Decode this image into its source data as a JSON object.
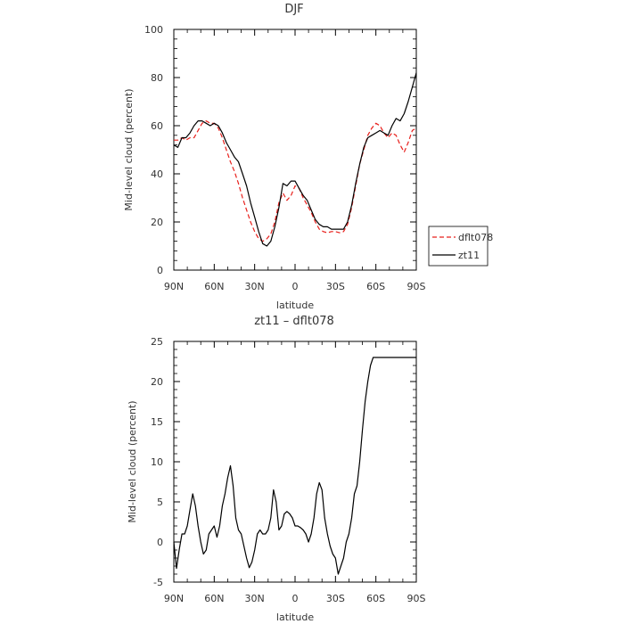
{
  "chart_data": [
    {
      "type": "line",
      "title": "DJF",
      "xlabel": "latitude",
      "ylabel": "Mid-level cloud (percent)",
      "xlim": [
        90,
        -90
      ],
      "ylim": [
        0,
        100
      ],
      "x_ticks": [
        90,
        60,
        30,
        0,
        -30,
        -60,
        -90
      ],
      "x_tick_labels": [
        "90N",
        "60N",
        "30N",
        "0",
        "30S",
        "60S",
        "90S"
      ],
      "y_ticks": [
        0,
        20,
        40,
        60,
        80,
        100
      ],
      "grid": false,
      "legend": "right",
      "series": [
        {
          "name": "dflt078",
          "color": "#e8201c",
          "dash": "dashed",
          "x": [
            90,
            87,
            84,
            81,
            78,
            75,
            72,
            69,
            66,
            63,
            60,
            57,
            54,
            51,
            48,
            45,
            42,
            39,
            36,
            33,
            30,
            27,
            24,
            21,
            18,
            15,
            12,
            9,
            6,
            3,
            0,
            -3,
            -6,
            -9,
            -12,
            -15,
            -18,
            -21,
            -24,
            -27,
            -30,
            -33,
            -36,
            -39,
            -42,
            -45,
            -48,
            -51,
            -54,
            -57,
            -60,
            -63,
            -66,
            -69,
            -72,
            -75,
            -78,
            -81,
            -84,
            -87,
            -90
          ],
          "y": [
            54,
            54,
            55,
            54,
            55,
            55,
            58,
            61,
            62,
            61,
            61,
            59,
            55,
            50,
            45,
            41,
            36,
            30,
            25,
            20,
            16,
            13,
            12,
            13,
            15,
            20,
            28,
            32,
            29,
            31,
            35,
            34,
            30,
            27,
            24,
            20,
            17,
            16,
            15.5,
            16,
            16,
            15.5,
            16,
            19,
            26,
            35,
            44,
            50,
            56,
            59,
            61,
            60,
            57,
            55,
            57,
            56,
            52,
            49,
            53,
            58,
            59
          ]
        },
        {
          "name": "zt11",
          "color": "#000000",
          "dash": "solid",
          "x": [
            90,
            87,
            84,
            81,
            78,
            75,
            72,
            69,
            66,
            63,
            60,
            57,
            54,
            51,
            48,
            45,
            42,
            39,
            36,
            33,
            30,
            27,
            24,
            21,
            18,
            15,
            12,
            9,
            6,
            3,
            0,
            -3,
            -6,
            -9,
            -12,
            -15,
            -18,
            -21,
            -24,
            -27,
            -30,
            -33,
            -36,
            -39,
            -42,
            -45,
            -48,
            -51,
            -54,
            -57,
            -60,
            -63,
            -66,
            -69,
            -72,
            -75,
            -78,
            -81,
            -84,
            -87,
            -90
          ],
          "y": [
            52,
            51,
            55,
            55,
            57,
            60,
            62,
            62,
            61,
            60,
            61,
            60,
            57,
            53,
            50,
            47,
            45,
            40,
            35,
            28,
            22,
            16,
            11,
            10,
            12,
            18,
            26,
            36,
            35,
            37,
            37,
            34,
            31,
            29,
            25,
            21,
            19,
            18,
            18,
            17,
            17,
            17,
            17,
            20,
            27,
            36,
            44,
            51,
            55,
            56,
            57,
            58,
            57,
            56,
            60,
            63,
            62,
            65,
            70,
            76,
            82
          ]
        }
      ]
    },
    {
      "type": "line",
      "title": "zt11 – dflt078",
      "xlabel": "latitude",
      "ylabel": "Mid-level cloud (percent)",
      "xlim": [
        90,
        -90
      ],
      "ylim": [
        -5,
        25
      ],
      "x_ticks": [
        90,
        60,
        30,
        0,
        -30,
        -60,
        -90
      ],
      "x_tick_labels": [
        "90N",
        "60N",
        "30N",
        "0",
        "30S",
        "60S",
        "90S"
      ],
      "y_ticks": [
        -5,
        0,
        5,
        10,
        15,
        20,
        25
      ],
      "grid": false,
      "series": [
        {
          "color": "#000000",
          "dash": "solid",
          "x": [
            90,
            88,
            86,
            84,
            82,
            80,
            78,
            76,
            74,
            72,
            70,
            68,
            66,
            64,
            62,
            60,
            58,
            56,
            54,
            52,
            50,
            48,
            46,
            44,
            42,
            40,
            38,
            36,
            34,
            32,
            30,
            28,
            26,
            24,
            22,
            20,
            18,
            16,
            14,
            12,
            10,
            8,
            6,
            4,
            2,
            0,
            -2,
            -4,
            -6,
            -8,
            -10,
            -12,
            -14,
            -16,
            -18,
            -20,
            -22,
            -24,
            -26,
            -28,
            -30,
            -32,
            -34,
            -36,
            -38,
            -40,
            -42,
            -44,
            -46,
            -48,
            -50,
            -52,
            -54,
            -56,
            -58,
            -60,
            -62,
            -64,
            -66,
            -68,
            -70,
            -72,
            -74,
            -76,
            -78,
            -80,
            -82,
            -84,
            -86,
            -88,
            -90
          ],
          "y": [
            0,
            -3.3,
            -1,
            1,
            1,
            2,
            4,
            6,
            4.5,
            2,
            0,
            -1.5,
            -1,
            1,
            1.5,
            2,
            0.6,
            2,
            4.5,
            6,
            8,
            9.5,
            7,
            3,
            1.5,
            1,
            -0.5,
            -2,
            -3.2,
            -2.5,
            -1,
            1,
            1.5,
            1,
            1,
            1.5,
            3,
            6.5,
            5,
            1.5,
            2,
            3.5,
            3.8,
            3.5,
            3,
            2,
            2,
            1.8,
            1.5,
            1,
            0,
            1,
            3,
            6,
            7.4,
            6.5,
            3,
            1,
            -0.5,
            -1.5,
            -2,
            -4,
            -3,
            -2,
            0,
            1,
            3,
            6,
            7,
            10,
            14,
            17.5,
            20,
            22,
            23,
            23,
            23,
            23,
            23,
            23,
            23,
            23,
            23,
            23,
            23,
            23,
            23,
            23,
            23,
            23,
            23
          ]
        }
      ]
    }
  ]
}
